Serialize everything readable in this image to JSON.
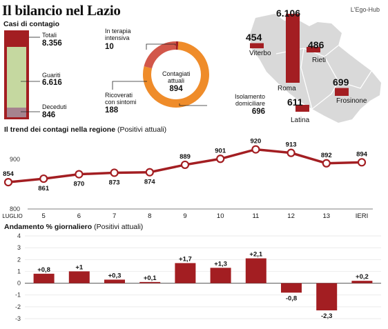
{
  "header": {
    "title": "Il bilancio nel Lazio",
    "brand": "L'Ego-Hub"
  },
  "colors": {
    "accent": "#a31e22",
    "guariti": "#c5d8a0",
    "deceduti": "#a6838f",
    "isolamento": "#ef8c2a",
    "ring_terapia": "#a31e22",
    "ring_ricoverati": "#d2574a",
    "map_fill": "#d9d9d9",
    "bar_fill": "#a31e22"
  },
  "casi": {
    "section_title": "Casi di contagio",
    "totali_label": "Totali",
    "totali_value": "8.356",
    "guariti_label": "Guariti",
    "guariti_value": "6.616",
    "deceduti_label": "Deceduti",
    "deceduti_value": "846",
    "totali": 8356,
    "guariti": 6616,
    "deceduti": 846
  },
  "donut": {
    "center_line1": "Contagiati",
    "center_line2": "attuali",
    "center_value": "894",
    "terapia_line1": "In terapia",
    "terapia_line2": "intensiva",
    "terapia_value": "10",
    "ricoverati_line1": "Ricoverati",
    "ricoverati_line2": "con sintomi",
    "ricoverati_value": "188",
    "isolamento_line1": "Isolamento",
    "isolamento_line2": "domiciliare",
    "isolamento_value": "696",
    "segments": [
      {
        "key": "terapia",
        "value": 10
      },
      {
        "key": "isolamento",
        "value": 696
      },
      {
        "key": "ricoverati",
        "value": 188
      }
    ]
  },
  "map": {
    "provinces": [
      {
        "name": "Viterbo",
        "value_label": "454",
        "value": 454
      },
      {
        "name": "Roma",
        "value_label": "6.106",
        "value": 6106
      },
      {
        "name": "Rieti",
        "value_label": "486",
        "value": 486
      },
      {
        "name": "Frosinone",
        "value_label": "699",
        "value": 699
      },
      {
        "name": "Latina",
        "value_label": "611",
        "value": 611
      }
    ]
  },
  "trend": {
    "title_bold": "Il trend dei contagi nella regione",
    "title_light": " (Positivi attuali)"
  },
  "daily": {
    "title_bold": "Andamento % giornaliero",
    "title_light": " (Positivi attuali)"
  },
  "chart_data": [
    {
      "type": "line",
      "title": "Il trend dei contagi nella regione (Positivi attuali)",
      "categories": [
        "LUGLIO",
        "5",
        "6",
        "7",
        "8",
        "9",
        "10",
        "11",
        "12",
        "13",
        "IERI"
      ],
      "values": [
        854,
        861,
        870,
        873,
        874,
        889,
        901,
        920,
        913,
        892,
        894
      ],
      "ylim": [
        800,
        950
      ],
      "yticks": [
        800,
        900
      ],
      "grid": false
    },
    {
      "type": "bar",
      "title": "Andamento % giornaliero (Positivi attuali)",
      "categories": [
        "",
        "",
        "",
        "",
        "",
        "",
        "",
        "",
        "",
        ""
      ],
      "values": [
        0.8,
        1,
        0.3,
        0.1,
        1.7,
        1.3,
        2.1,
        -0.8,
        -2.3,
        0.2
      ],
      "labels": [
        "+0,8",
        "+1",
        "+0,3",
        "+0,1",
        "+1,7",
        "+1,3",
        "+2,1",
        "-0,8",
        "-2,3",
        "+0,2"
      ],
      "ylim": [
        -3,
        4
      ],
      "yticks": [
        4,
        3,
        2,
        1,
        0,
        -1,
        -2,
        -3
      ],
      "grid": true
    }
  ]
}
